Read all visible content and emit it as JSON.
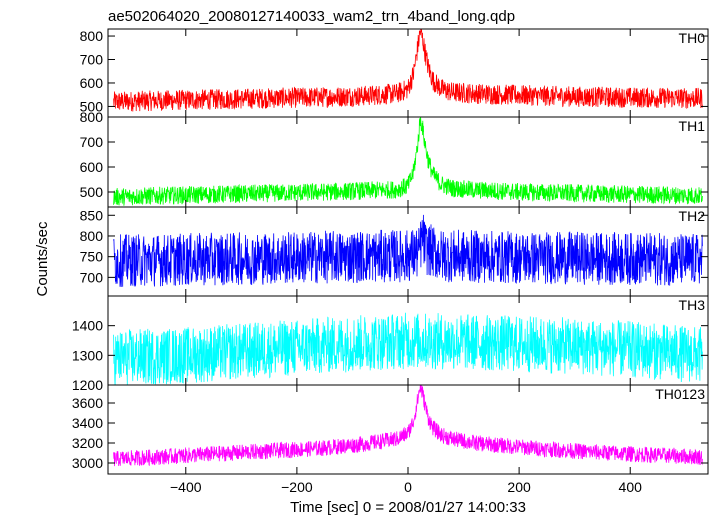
{
  "chart_data": {
    "type": "line",
    "title": "ae502064020_20080127140033_wam2_trn_4band_long.qdp",
    "xlabel": "Time [sec] 0 = 2008/01/27 14:00:33",
    "ylabel": "Counts/sec",
    "xlim": [
      -540,
      540
    ],
    "xticks": [
      -400,
      -200,
      0,
      200,
      400
    ],
    "xtick_labels": [
      "−400",
      "−200",
      "0",
      "200",
      "400"
    ],
    "grid": false,
    "panels": [
      {
        "name": "TH0",
        "color": "#ff0000",
        "ylim": [
          455,
          830
        ],
        "yticks": [
          500,
          600,
          700,
          800
        ],
        "series": {
          "x": [
            -530,
            -450,
            -350,
            -250,
            -150,
            -80,
            -20,
            0,
            10,
            18,
            22,
            26,
            30,
            36,
            45,
            60,
            80,
            120,
            200,
            300,
            400,
            530
          ],
          "y": [
            520,
            525,
            530,
            535,
            540,
            545,
            555,
            575,
            640,
            760,
            820,
            790,
            740,
            670,
            610,
            575,
            560,
            555,
            548,
            542,
            538,
            535
          ],
          "noise": 55
        }
      },
      {
        "name": "TH1",
        "color": "#00ff00",
        "ylim": [
          440,
          800
        ],
        "yticks": [
          500,
          600,
          700,
          800
        ],
        "series": {
          "x": [
            -530,
            -450,
            -350,
            -250,
            -150,
            -80,
            -20,
            0,
            10,
            18,
            22,
            26,
            30,
            36,
            45,
            60,
            80,
            120,
            200,
            300,
            400,
            530
          ],
          "y": [
            480,
            485,
            490,
            495,
            500,
            505,
            510,
            525,
            580,
            700,
            790,
            760,
            700,
            630,
            570,
            530,
            515,
            508,
            500,
            495,
            490,
            485
          ],
          "noise": 45
        }
      },
      {
        "name": "TH2",
        "color": "#0000ff",
        "ylim": [
          655,
          870
        ],
        "yticks": [
          700,
          750,
          800,
          850
        ],
        "series": {
          "x": [
            -530,
            -300,
            -100,
            0,
            20,
            26,
            32,
            60,
            200,
            400,
            530
          ],
          "y": [
            740,
            745,
            750,
            752,
            760,
            800,
            770,
            752,
            748,
            745,
            742
          ],
          "noise": 80
        }
      },
      {
        "name": "TH3",
        "color": "#00ffff",
        "ylim": [
          1200,
          1500
        ],
        "yticks": [
          1200,
          1300,
          1400
        ],
        "series": {
          "x": [
            -530,
            -400,
            -250,
            -100,
            0,
            100,
            250,
            400,
            530
          ],
          "y": [
            1290,
            1300,
            1320,
            1340,
            1350,
            1345,
            1335,
            1320,
            1300
          ],
          "noise": 120
        }
      },
      {
        "name": "TH0123",
        "color": "#ff00ff",
        "ylim": [
          2890,
          3780
        ],
        "yticks": [
          3000,
          3200,
          3400,
          3600
        ],
        "series": {
          "x": [
            -530,
            -450,
            -350,
            -250,
            -150,
            -80,
            -20,
            0,
            10,
            18,
            22,
            26,
            30,
            36,
            45,
            60,
            80,
            120,
            200,
            300,
            400,
            530
          ],
          "y": [
            3040,
            3060,
            3090,
            3120,
            3150,
            3190,
            3240,
            3300,
            3420,
            3650,
            3760,
            3700,
            3600,
            3460,
            3350,
            3280,
            3240,
            3200,
            3160,
            3120,
            3090,
            3060
          ],
          "noise": 100
        }
      }
    ]
  }
}
